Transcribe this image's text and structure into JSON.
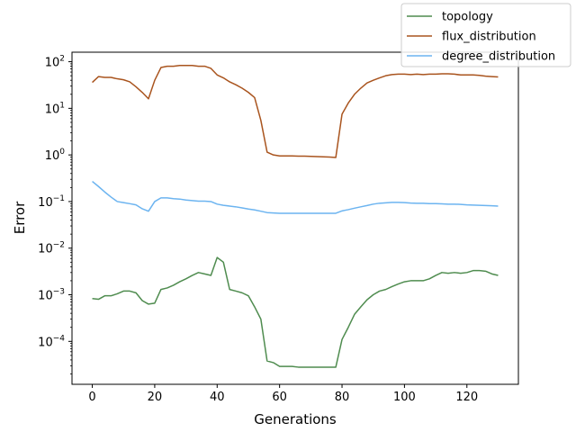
{
  "chart_data": {
    "type": "line",
    "xlabel": "Generations",
    "ylabel": "Error",
    "xlim": [
      -6.5,
      136.5
    ],
    "ylim": [
      1.2e-05,
      160
    ],
    "yscale": "log",
    "x_ticks": [
      0,
      20,
      40,
      60,
      80,
      100,
      120
    ],
    "y_ticks": [
      {
        "value": 0.0001,
        "mantissa": "10",
        "exp": "−4"
      },
      {
        "value": 0.001,
        "mantissa": "10",
        "exp": "−3"
      },
      {
        "value": 0.01,
        "mantissa": "10",
        "exp": "−2"
      },
      {
        "value": 0.1,
        "mantissa": "10",
        "exp": "−1"
      },
      {
        "value": 1,
        "mantissa": "10",
        "exp": "0"
      },
      {
        "value": 10,
        "mantissa": "10",
        "exp": "1"
      },
      {
        "value": 100,
        "mantissa": "10",
        "exp": "2"
      }
    ],
    "legend_position": "upper-right-outside",
    "grid": false,
    "series": [
      {
        "name": "topology",
        "color": "#4f8c4f",
        "x": [
          0,
          2,
          4,
          6,
          8,
          10,
          12,
          14,
          16,
          18,
          20,
          22,
          24,
          26,
          28,
          30,
          32,
          34,
          36,
          38,
          40,
          42,
          44,
          46,
          48,
          50,
          52,
          54,
          56,
          58,
          60,
          62,
          64,
          66,
          68,
          70,
          72,
          74,
          76,
          78,
          80,
          82,
          84,
          86,
          88,
          90,
          92,
          94,
          96,
          98,
          100,
          102,
          104,
          106,
          108,
          110,
          112,
          114,
          116,
          118,
          120,
          122,
          124,
          126,
          128,
          130
        ],
        "values": [
          0.00083,
          0.0008,
          0.00095,
          0.00095,
          0.00105,
          0.0012,
          0.0012,
          0.0011,
          0.00075,
          0.00063,
          0.00066,
          0.0013,
          0.0014,
          0.0016,
          0.0019,
          0.0022,
          0.0026,
          0.003,
          0.0028,
          0.0026,
          0.0063,
          0.005,
          0.0013,
          0.0012,
          0.0011,
          0.00095,
          0.00055,
          0.0003,
          3.8e-05,
          3.5e-05,
          2.9e-05,
          2.9e-05,
          2.9e-05,
          2.8e-05,
          2.8e-05,
          2.8e-05,
          2.8e-05,
          2.8e-05,
          2.8e-05,
          2.8e-05,
          0.00011,
          0.0002,
          0.00038,
          0.00055,
          0.00078,
          0.001,
          0.0012,
          0.0013,
          0.0015,
          0.0017,
          0.0019,
          0.002,
          0.002,
          0.002,
          0.0022,
          0.0026,
          0.003,
          0.0029,
          0.003,
          0.0029,
          0.003,
          0.0033,
          0.0033,
          0.0032,
          0.0028,
          0.0026
        ]
      },
      {
        "name": "flux_distribution",
        "color": "#a9541e",
        "x": [
          0,
          2,
          4,
          6,
          8,
          10,
          12,
          14,
          16,
          18,
          20,
          22,
          24,
          26,
          28,
          30,
          32,
          34,
          36,
          38,
          40,
          42,
          44,
          46,
          48,
          50,
          52,
          54,
          56,
          58,
          60,
          62,
          64,
          66,
          68,
          70,
          72,
          74,
          76,
          78,
          80,
          82,
          84,
          86,
          88,
          90,
          92,
          94,
          96,
          98,
          100,
          102,
          104,
          106,
          108,
          110,
          112,
          114,
          116,
          118,
          120,
          122,
          124,
          126,
          128,
          130
        ],
        "values": [
          36,
          48,
          46,
          46,
          43,
          41,
          37,
          29,
          22,
          16,
          40,
          75,
          80,
          80,
          83,
          83,
          83,
          80,
          80,
          72,
          52,
          45,
          37,
          32,
          27,
          22,
          17,
          5.5,
          1.15,
          1.0,
          0.95,
          0.95,
          0.95,
          0.94,
          0.94,
          0.93,
          0.92,
          0.91,
          0.9,
          0.88,
          7.5,
          13,
          20,
          27,
          35,
          40,
          45,
          50,
          53,
          54,
          54,
          53,
          54,
          53,
          54,
          54,
          55,
          55,
          54,
          52,
          52,
          52,
          51,
          49,
          48,
          47
        ]
      },
      {
        "name": "degree_distribution",
        "color": "#6cb4f0",
        "x": [
          0,
          2,
          4,
          6,
          8,
          10,
          12,
          14,
          16,
          18,
          20,
          22,
          24,
          26,
          28,
          30,
          32,
          34,
          36,
          38,
          40,
          42,
          44,
          46,
          48,
          50,
          52,
          54,
          56,
          58,
          60,
          62,
          64,
          66,
          68,
          70,
          72,
          74,
          76,
          78,
          80,
          82,
          84,
          86,
          88,
          90,
          92,
          94,
          96,
          98,
          100,
          102,
          104,
          106,
          108,
          110,
          112,
          114,
          116,
          118,
          120,
          122,
          124,
          126,
          128,
          130
        ],
        "values": [
          0.27,
          0.21,
          0.16,
          0.125,
          0.1,
          0.095,
          0.09,
          0.085,
          0.07,
          0.062,
          0.1,
          0.12,
          0.12,
          0.115,
          0.113,
          0.108,
          0.105,
          0.102,
          0.102,
          0.1,
          0.088,
          0.083,
          0.08,
          0.077,
          0.073,
          0.069,
          0.066,
          0.062,
          0.058,
          0.057,
          0.056,
          0.056,
          0.056,
          0.056,
          0.056,
          0.056,
          0.056,
          0.056,
          0.056,
          0.056,
          0.063,
          0.067,
          0.072,
          0.077,
          0.082,
          0.088,
          0.092,
          0.094,
          0.096,
          0.096,
          0.095,
          0.093,
          0.092,
          0.092,
          0.09,
          0.09,
          0.089,
          0.088,
          0.088,
          0.087,
          0.085,
          0.084,
          0.083,
          0.082,
          0.081,
          0.08
        ]
      }
    ]
  }
}
